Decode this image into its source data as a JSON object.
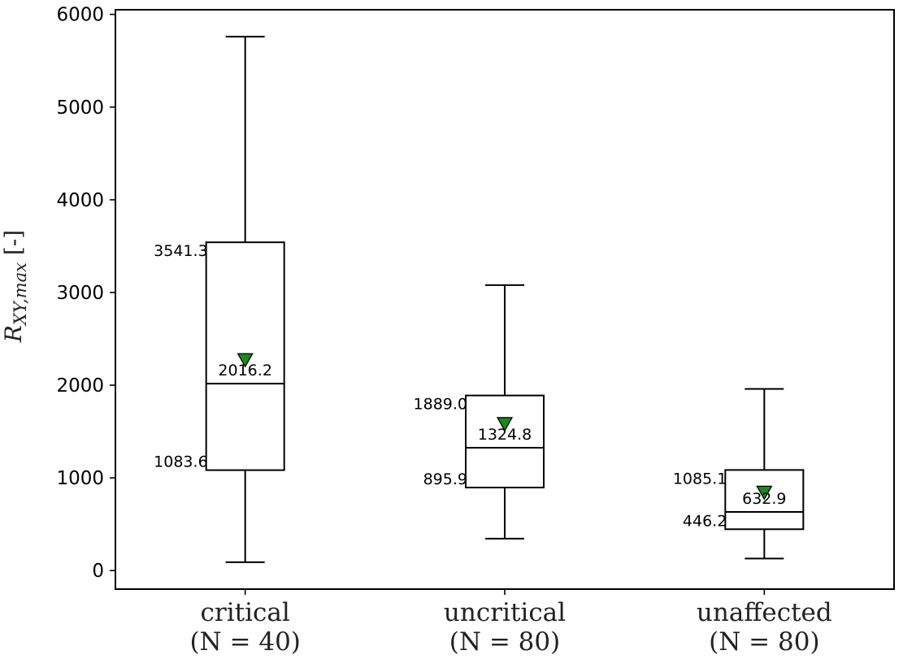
{
  "chart_data": {
    "type": "box",
    "title": "",
    "xlabel": "",
    "ylabel": {
      "symbol": "R",
      "subscript": "XY,max",
      "unit": " [-]"
    },
    "ylim": [
      -200,
      6050
    ],
    "yticks": [
      0,
      1000,
      2000,
      3000,
      4000,
      5000,
      6000
    ],
    "colors": {
      "box": "#000000",
      "mean_marker": "#1a8a1a"
    },
    "boxes": [
      {
        "label": "critical",
        "count_label": "(N = 40)",
        "whisker_low": 90,
        "q1": 1083.6,
        "median": 2016.2,
        "q3": 3541.3,
        "whisker_high": 5760,
        "mean": 2270,
        "q1_label": "1083.6",
        "median_label": "2016.2",
        "q3_label": "3541.3"
      },
      {
        "label": "uncritical",
        "count_label": "(N = 80)",
        "whisker_low": 345,
        "q1": 895.9,
        "median": 1324.8,
        "q3": 1889.0,
        "whisker_high": 3080,
        "mean": 1580,
        "q1_label": "895.9",
        "median_label": "1324.8",
        "q3_label": "1889.0"
      },
      {
        "label": "unaffected",
        "count_label": "(N = 80)",
        "whisker_low": 130,
        "q1": 446.2,
        "median": 632.9,
        "q3": 1085.1,
        "whisker_high": 1960,
        "mean": 840,
        "q1_label": "446.2",
        "median_label": "632.9",
        "q3_label": "1085.1"
      }
    ]
  }
}
